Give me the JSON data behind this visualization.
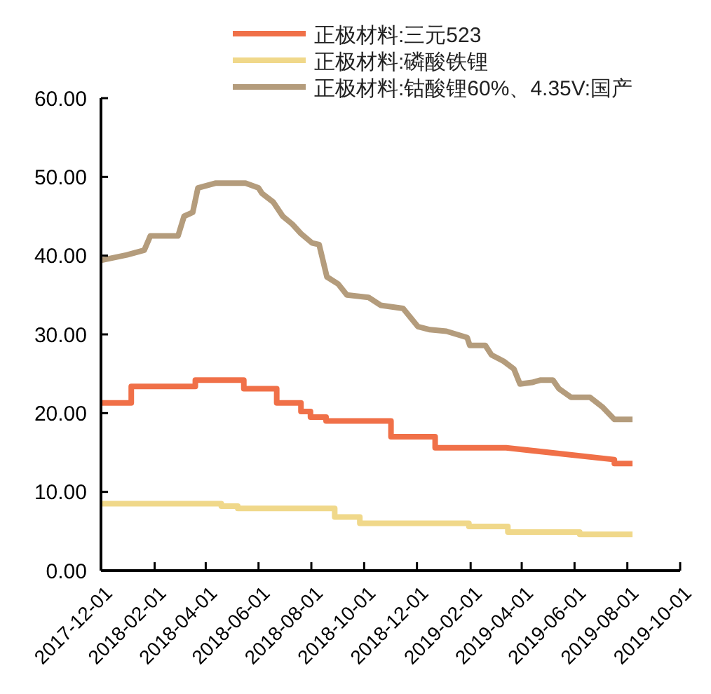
{
  "chart_data": {
    "type": "line",
    "legend": "top",
    "xlim": [
      "2017-12-01",
      "2019-10-01"
    ],
    "xticks": [
      "2017-12-01",
      "2018-02-01",
      "2018-04-01",
      "2018-06-01",
      "2018-08-01",
      "2018-10-01",
      "2018-12-01",
      "2019-02-01",
      "2019-04-01",
      "2019-06-01",
      "2019-08-01",
      "2019-10-01"
    ],
    "ylim": [
      0,
      60
    ],
    "yticks": [
      {
        "value": 0,
        "label": "0.00"
      },
      {
        "value": 10,
        "label": "10.00"
      },
      {
        "value": 20,
        "label": "20.00"
      },
      {
        "value": 30,
        "label": "30.00"
      },
      {
        "value": 40,
        "label": "40.00"
      },
      {
        "value": 50,
        "label": "50.00"
      },
      {
        "value": 60,
        "label": "60.00"
      }
    ],
    "series": [
      {
        "name": "正极材料:三元523",
        "color": "#f07048",
        "x": [
          "2017-12-01",
          "2018-01-05",
          "2018-01-05",
          "2018-03-20",
          "2018-03-20",
          "2018-05-15",
          "2018-05-15",
          "2018-06-22",
          "2018-06-22",
          "2018-07-20",
          "2018-07-20",
          "2018-07-31",
          "2018-07-31",
          "2018-08-18",
          "2018-08-18",
          "2018-11-01",
          "2018-11-01",
          "2018-12-22",
          "2018-12-22",
          "2019-03-14",
          "2019-07-17",
          "2019-07-17",
          "2019-08-07"
        ],
        "values": [
          21.3,
          21.3,
          23.4,
          23.4,
          24.2,
          24.2,
          23.1,
          23.1,
          21.3,
          21.3,
          20.2,
          20.2,
          19.5,
          19.5,
          19.0,
          19.0,
          17.0,
          17.0,
          15.6,
          15.6,
          14.1,
          13.6,
          13.6
        ]
      },
      {
        "name": "正极材料:磷酸铁锂",
        "color": "#f0d88a",
        "x": [
          "2017-12-01",
          "2018-04-19",
          "2018-04-19",
          "2018-05-08",
          "2018-05-08",
          "2018-08-28",
          "2018-08-28",
          "2018-09-26",
          "2018-09-26",
          "2019-01-30",
          "2019-01-30",
          "2019-03-16",
          "2019-03-16",
          "2019-06-07",
          "2019-06-07",
          "2019-08-07"
        ],
        "values": [
          8.5,
          8.5,
          8.2,
          8.2,
          7.9,
          7.9,
          6.8,
          6.8,
          6.0,
          6.0,
          5.6,
          5.6,
          4.9,
          4.9,
          4.6,
          4.6
        ]
      },
      {
        "name": "正极材料:钴酸锂60%、4.35V:国产",
        "color": "#b49c7c",
        "x": [
          "2017-12-01",
          "2017-12-31",
          "2018-01-20",
          "2018-01-27",
          "2018-02-28",
          "2018-03-07",
          "2018-03-17",
          "2018-03-23",
          "2018-04-12",
          "2018-05-17",
          "2018-06-01",
          "2018-06-05",
          "2018-06-18",
          "2018-06-29",
          "2018-07-10",
          "2018-07-20",
          "2018-08-02",
          "2018-08-10",
          "2018-08-19",
          "2018-09-01",
          "2018-09-11",
          "2018-10-06",
          "2018-10-20",
          "2018-11-15",
          "2018-12-02",
          "2018-12-16",
          "2019-01-04",
          "2019-01-28",
          "2019-01-31",
          "2019-02-18",
          "2019-02-25",
          "2019-03-11",
          "2019-03-23",
          "2019-03-30",
          "2019-04-13",
          "2019-04-23",
          "2019-05-07",
          "2019-05-14",
          "2019-05-28",
          "2019-06-19",
          "2019-07-03",
          "2019-07-17",
          "2019-08-07"
        ],
        "values": [
          39.4,
          40.1,
          40.7,
          42.5,
          42.5,
          45.0,
          45.5,
          48.6,
          49.2,
          49.2,
          48.6,
          47.9,
          46.8,
          45.0,
          44.0,
          42.8,
          41.6,
          41.4,
          37.3,
          36.4,
          35.0,
          34.7,
          33.7,
          33.3,
          31.0,
          30.6,
          30.4,
          29.6,
          28.6,
          28.6,
          27.4,
          26.6,
          25.6,
          23.7,
          23.9,
          24.2,
          24.2,
          23.1,
          22.0,
          22.0,
          20.8,
          19.2,
          19.2
        ]
      }
    ]
  }
}
